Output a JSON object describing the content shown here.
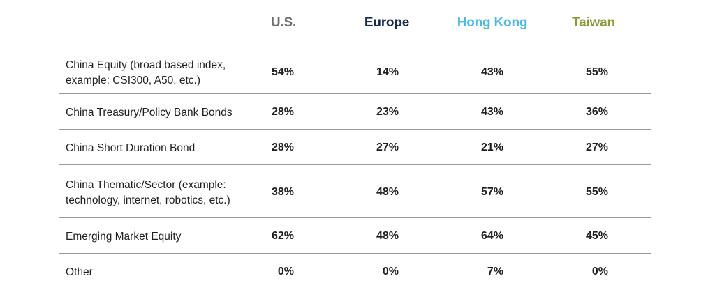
{
  "chart_data": {
    "type": "table",
    "columns": [
      {
        "label": "U.S.",
        "color": "#6d6e71"
      },
      {
        "label": "Europe",
        "color": "#1b2a4a"
      },
      {
        "label": "Hong Kong",
        "color": "#4fb9e3"
      },
      {
        "label": "Taiwan",
        "color": "#8a9a3a"
      }
    ],
    "rows": [
      {
        "label": "China Equity (broad based index,\nexample: CSI300, A50, etc.)",
        "values": [
          "54%",
          "14%",
          "43%",
          "55%"
        ]
      },
      {
        "label": "China Treasury/Policy Bank Bonds",
        "values": [
          "28%",
          "23%",
          "43%",
          "36%"
        ]
      },
      {
        "label": "China Short Duration Bond",
        "values": [
          "28%",
          "27%",
          "21%",
          "27%"
        ]
      },
      {
        "label": "China Thematic/Sector (example:\ntechnology, internet, robotics, etc.)",
        "values": [
          "38%",
          "48%",
          "57%",
          "55%"
        ]
      },
      {
        "label": "Emerging Market Equity",
        "values": [
          "62%",
          "48%",
          "64%",
          "45%"
        ]
      },
      {
        "label": "Other",
        "values": [
          "0%",
          "0%",
          "7%",
          "0%"
        ]
      }
    ]
  }
}
